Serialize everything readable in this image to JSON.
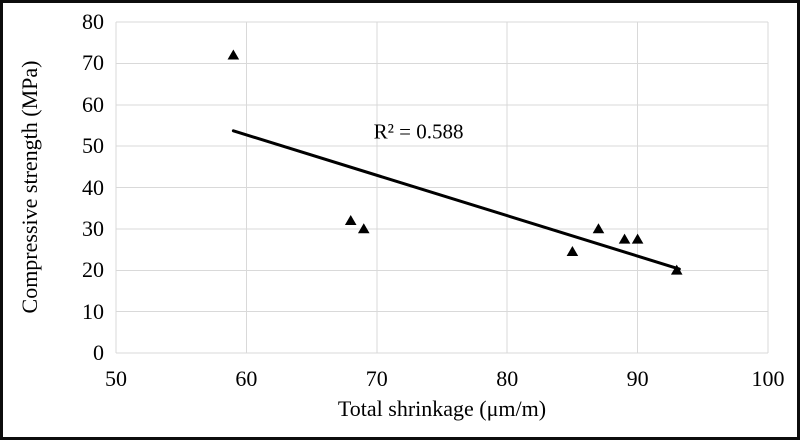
{
  "figure": {
    "background": "#ffffff",
    "frame_color": "#0d0d0d"
  },
  "chart_data": {
    "type": "scatter",
    "title": "",
    "xlabel": "Total shrinkage (μm/m)",
    "ylabel": "Compressive strength (MPa)",
    "xlim": [
      50,
      100
    ],
    "ylim": [
      0,
      80
    ],
    "xticks": [
      50,
      60,
      70,
      80,
      90,
      100
    ],
    "yticks": [
      0,
      10,
      20,
      30,
      40,
      50,
      60,
      70,
      80
    ],
    "grid": true,
    "grid_color": "#d9d9d9",
    "marker": "triangle-up",
    "marker_color": "#000000",
    "points": [
      {
        "x": 59,
        "y": 72
      },
      {
        "x": 68,
        "y": 32
      },
      {
        "x": 69,
        "y": 30
      },
      {
        "x": 85,
        "y": 24.5
      },
      {
        "x": 87,
        "y": 30
      },
      {
        "x": 89,
        "y": 27.5
      },
      {
        "x": 90,
        "y": 27.5
      },
      {
        "x": 93,
        "y": 20
      }
    ],
    "trendline": {
      "x1": 59,
      "y1": 53.7,
      "x2": 93.2,
      "y2": 20.3,
      "color": "#000000",
      "width": 3
    },
    "annotation": {
      "text": "R² = 0.588",
      "x": 73.2,
      "y": 53.5
    },
    "legend": "none"
  }
}
